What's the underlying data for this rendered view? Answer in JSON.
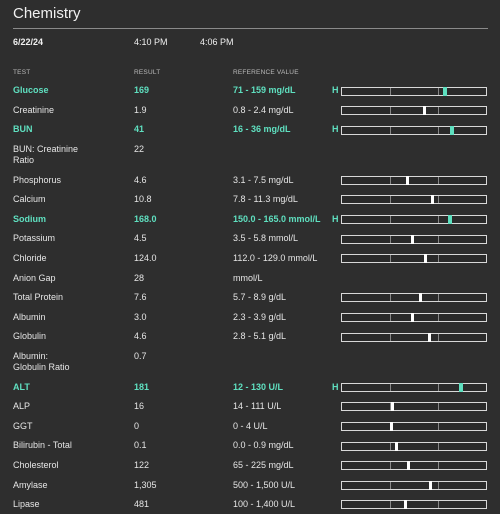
{
  "header": {
    "title": "Chemistry",
    "date": "6/22/24",
    "times": [
      "4:10 PM",
      "4:06 PM"
    ]
  },
  "table": {
    "columns": [
      "TEST",
      "RESULT",
      "REFERENCE VALUE"
    ],
    "rows": [
      {
        "test": "Glucose",
        "result": "169",
        "reference": "71 - 159 mg/dL",
        "flag": "H"
      },
      {
        "test": "Creatinine",
        "result": "1.9",
        "reference": "0.8 - 2.4 mg/dL"
      },
      {
        "test": "BUN",
        "result": "41",
        "reference": "16 - 36 mg/dL",
        "flag": "H"
      },
      {
        "test": "BUN: Creatinine\nRatio",
        "result": "22",
        "reference": ""
      },
      {
        "test": "Phosphorus",
        "result": "4.6",
        "reference": "3.1 - 7.5 mg/dL"
      },
      {
        "test": "Calcium",
        "result": "10.8",
        "reference": "7.8 - 11.3 mg/dL"
      },
      {
        "test": "Sodium",
        "result": "168.0",
        "reference": "150.0 - 165.0 mmol/L",
        "flag": "H"
      },
      {
        "test": "Potassium",
        "result": "4.5",
        "reference": "3.5 - 5.8 mmol/L"
      },
      {
        "test": "Chloride",
        "result": "124.0",
        "reference": "112.0 - 129.0 mmol/L"
      },
      {
        "test": "Anion Gap",
        "result": "28",
        "reference": "mmol/L"
      },
      {
        "test": "Total Protein",
        "result": "7.6",
        "reference": "5.7 - 8.9 g/dL"
      },
      {
        "test": "Albumin",
        "result": "3.0",
        "reference": "2.3 - 3.9 g/dL"
      },
      {
        "test": "Globulin",
        "result": "4.6",
        "reference": "2.8 - 5.1 g/dL"
      },
      {
        "test": "Albumin:\nGlobulin Ratio",
        "result": "0.7",
        "reference": ""
      },
      {
        "test": "ALT",
        "result": "181",
        "reference": "12 - 130 U/L",
        "flag": "H"
      },
      {
        "test": "ALP",
        "result": "16",
        "reference": "14 - 111 U/L"
      },
      {
        "test": "GGT",
        "result": "0",
        "reference": "0 - 4 U/L"
      },
      {
        "test": "Bilirubin - Total",
        "result": "0.1",
        "reference": "0.0 - 0.9 mg/dL"
      },
      {
        "test": "Cholesterol",
        "result": "122",
        "reference": "65 - 225 mg/dL"
      },
      {
        "test": "Amylase",
        "result": "1,305",
        "reference": "500 - 1,500 U/L"
      },
      {
        "test": "Lipase",
        "result": "481",
        "reference": "100 - 1,400 U/L"
      }
    ]
  }
}
